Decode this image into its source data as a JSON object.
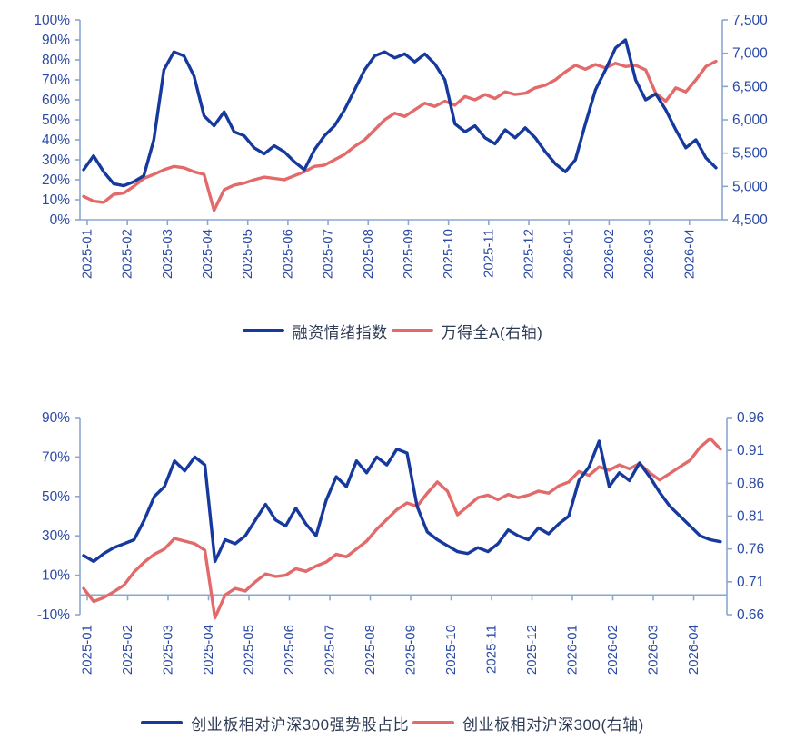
{
  "colors": {
    "axis_text": "#2b4aa5",
    "spine": "#8aa7d2",
    "legend_text": "#2e3b55",
    "blue_line": "#16399d",
    "red_line": "#e26a6a"
  },
  "chart_data": [
    {
      "type": "line",
      "title": "",
      "x_labels": [
        "2025-01",
        "2025-02",
        "2025-03",
        "2025-04",
        "2025-05",
        "2025-06",
        "2025-07",
        "2025-08",
        "2025-09",
        "2025-10",
        "2025-11",
        "2025-12",
        "2026-01",
        "2026-02",
        "2026-03",
        "2026-04"
      ],
      "left_axis": {
        "min": 0,
        "max": 100,
        "tick_step": 10,
        "suffix": "%",
        "baseline": 0
      },
      "right_axis": {
        "min": 4500,
        "max": 7500,
        "tick_step": 500,
        "thousands": true
      },
      "legend_position": "bottom",
      "grid": false,
      "series": [
        {
          "name": "融资情绪指数",
          "axis": "left",
          "color": "#16399d",
          "values": [
            25,
            32,
            24,
            18,
            17,
            19,
            22,
            40,
            75,
            84,
            82,
            72,
            52,
            47,
            54,
            44,
            42,
            36,
            33,
            37,
            34,
            29,
            25,
            35,
            42,
            47,
            55,
            65,
            75,
            82,
            84,
            81,
            83,
            79,
            83,
            78,
            70,
            48,
            44,
            47,
            41,
            38,
            45,
            41,
            46,
            41,
            34,
            28,
            24,
            30,
            48,
            65,
            75,
            86,
            90,
            70,
            60,
            63,
            55,
            45,
            36,
            40,
            31,
            26
          ]
        },
        {
          "name": "万得全A(右轴)",
          "axis": "right",
          "color": "#e26a6a",
          "values": [
            4850,
            4780,
            4760,
            4880,
            4900,
            5000,
            5120,
            5180,
            5250,
            5300,
            5280,
            5220,
            5180,
            4640,
            4950,
            5020,
            5050,
            5100,
            5140,
            5120,
            5100,
            5160,
            5220,
            5300,
            5320,
            5400,
            5480,
            5600,
            5700,
            5850,
            6000,
            6100,
            6050,
            6150,
            6250,
            6200,
            6280,
            6220,
            6350,
            6300,
            6380,
            6320,
            6420,
            6380,
            6400,
            6480,
            6520,
            6600,
            6720,
            6820,
            6760,
            6830,
            6780,
            6850,
            6800,
            6820,
            6750,
            6400,
            6280,
            6480,
            6420,
            6600,
            6800,
            6880
          ]
        }
      ]
    },
    {
      "type": "line",
      "title": "",
      "x_labels": [
        "2025-01",
        "2025-02",
        "2025-03",
        "2025-04",
        "2025-05",
        "2025-06",
        "2025-07",
        "2025-08",
        "2025-09",
        "2025-10",
        "2025-11",
        "2025-12",
        "2026-01",
        "2026-02",
        "2026-03",
        "2026-04"
      ],
      "left_axis": {
        "min": -10,
        "max": 90,
        "tick_step": 20,
        "suffix": "%",
        "baseline": 0
      },
      "right_axis": {
        "min": 0.66,
        "max": 0.96,
        "tick_step": 0.05,
        "decimals": 2
      },
      "legend_position": "bottom",
      "grid": false,
      "series": [
        {
          "name": "创业板相对沪深300强势股占比",
          "axis": "left",
          "color": "#16399d",
          "values": [
            20,
            17,
            21,
            24,
            26,
            28,
            38,
            50,
            55,
            68,
            63,
            70,
            66,
            17,
            28,
            26,
            30,
            38,
            46,
            38,
            35,
            44,
            36,
            30,
            48,
            60,
            55,
            68,
            62,
            70,
            66,
            74,
            72,
            45,
            32,
            28,
            25,
            22,
            21,
            24,
            22,
            26,
            33,
            30,
            28,
            34,
            31,
            36,
            40,
            58,
            65,
            78,
            55,
            62,
            58,
            67,
            60,
            52,
            45,
            40,
            35,
            30,
            28,
            27
          ]
        },
        {
          "name": "创业板相对沪深300(右轴)",
          "axis": "right",
          "color": "#e26a6a",
          "values": [
            0.7,
            0.68,
            0.686,
            0.695,
            0.705,
            0.725,
            0.74,
            0.752,
            0.76,
            0.776,
            0.772,
            0.768,
            0.758,
            0.655,
            0.69,
            0.7,
            0.696,
            0.71,
            0.722,
            0.718,
            0.72,
            0.73,
            0.726,
            0.734,
            0.74,
            0.752,
            0.748,
            0.76,
            0.772,
            0.79,
            0.805,
            0.82,
            0.83,
            0.825,
            0.845,
            0.862,
            0.848,
            0.812,
            0.825,
            0.838,
            0.842,
            0.835,
            0.843,
            0.838,
            0.842,
            0.848,
            0.845,
            0.856,
            0.862,
            0.878,
            0.872,
            0.885,
            0.88,
            0.888,
            0.882,
            0.89,
            0.876,
            0.865,
            0.875,
            0.885,
            0.895,
            0.915,
            0.928,
            0.912
          ]
        }
      ]
    }
  ]
}
